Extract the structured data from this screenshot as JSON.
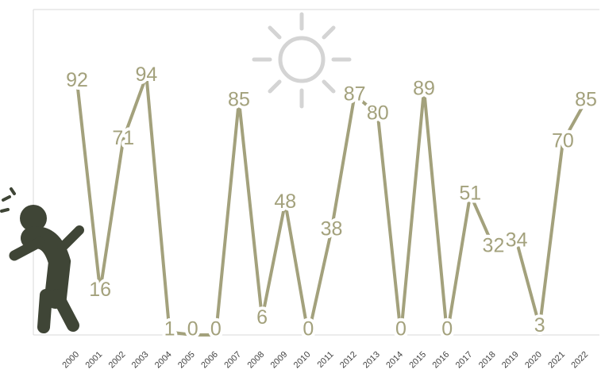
{
  "chart_data": {
    "type": "line",
    "categories": [
      "2000",
      "2001",
      "2002",
      "2003",
      "2004",
      "2005",
      "2006",
      "2007",
      "2008",
      "2009",
      "2010",
      "2011",
      "2012",
      "2013",
      "2014",
      "2015",
      "2016",
      "2017",
      "2018",
      "2019",
      "2020",
      "2021",
      "2022"
    ],
    "values": [
      92,
      16,
      71,
      94,
      1,
      0,
      0,
      85,
      6,
      48,
      0,
      38,
      87,
      80,
      0,
      89,
      0,
      51,
      32,
      34,
      3,
      70,
      85
    ],
    "color": "#a3a17c",
    "ylim": [
      0,
      118
    ]
  }
}
